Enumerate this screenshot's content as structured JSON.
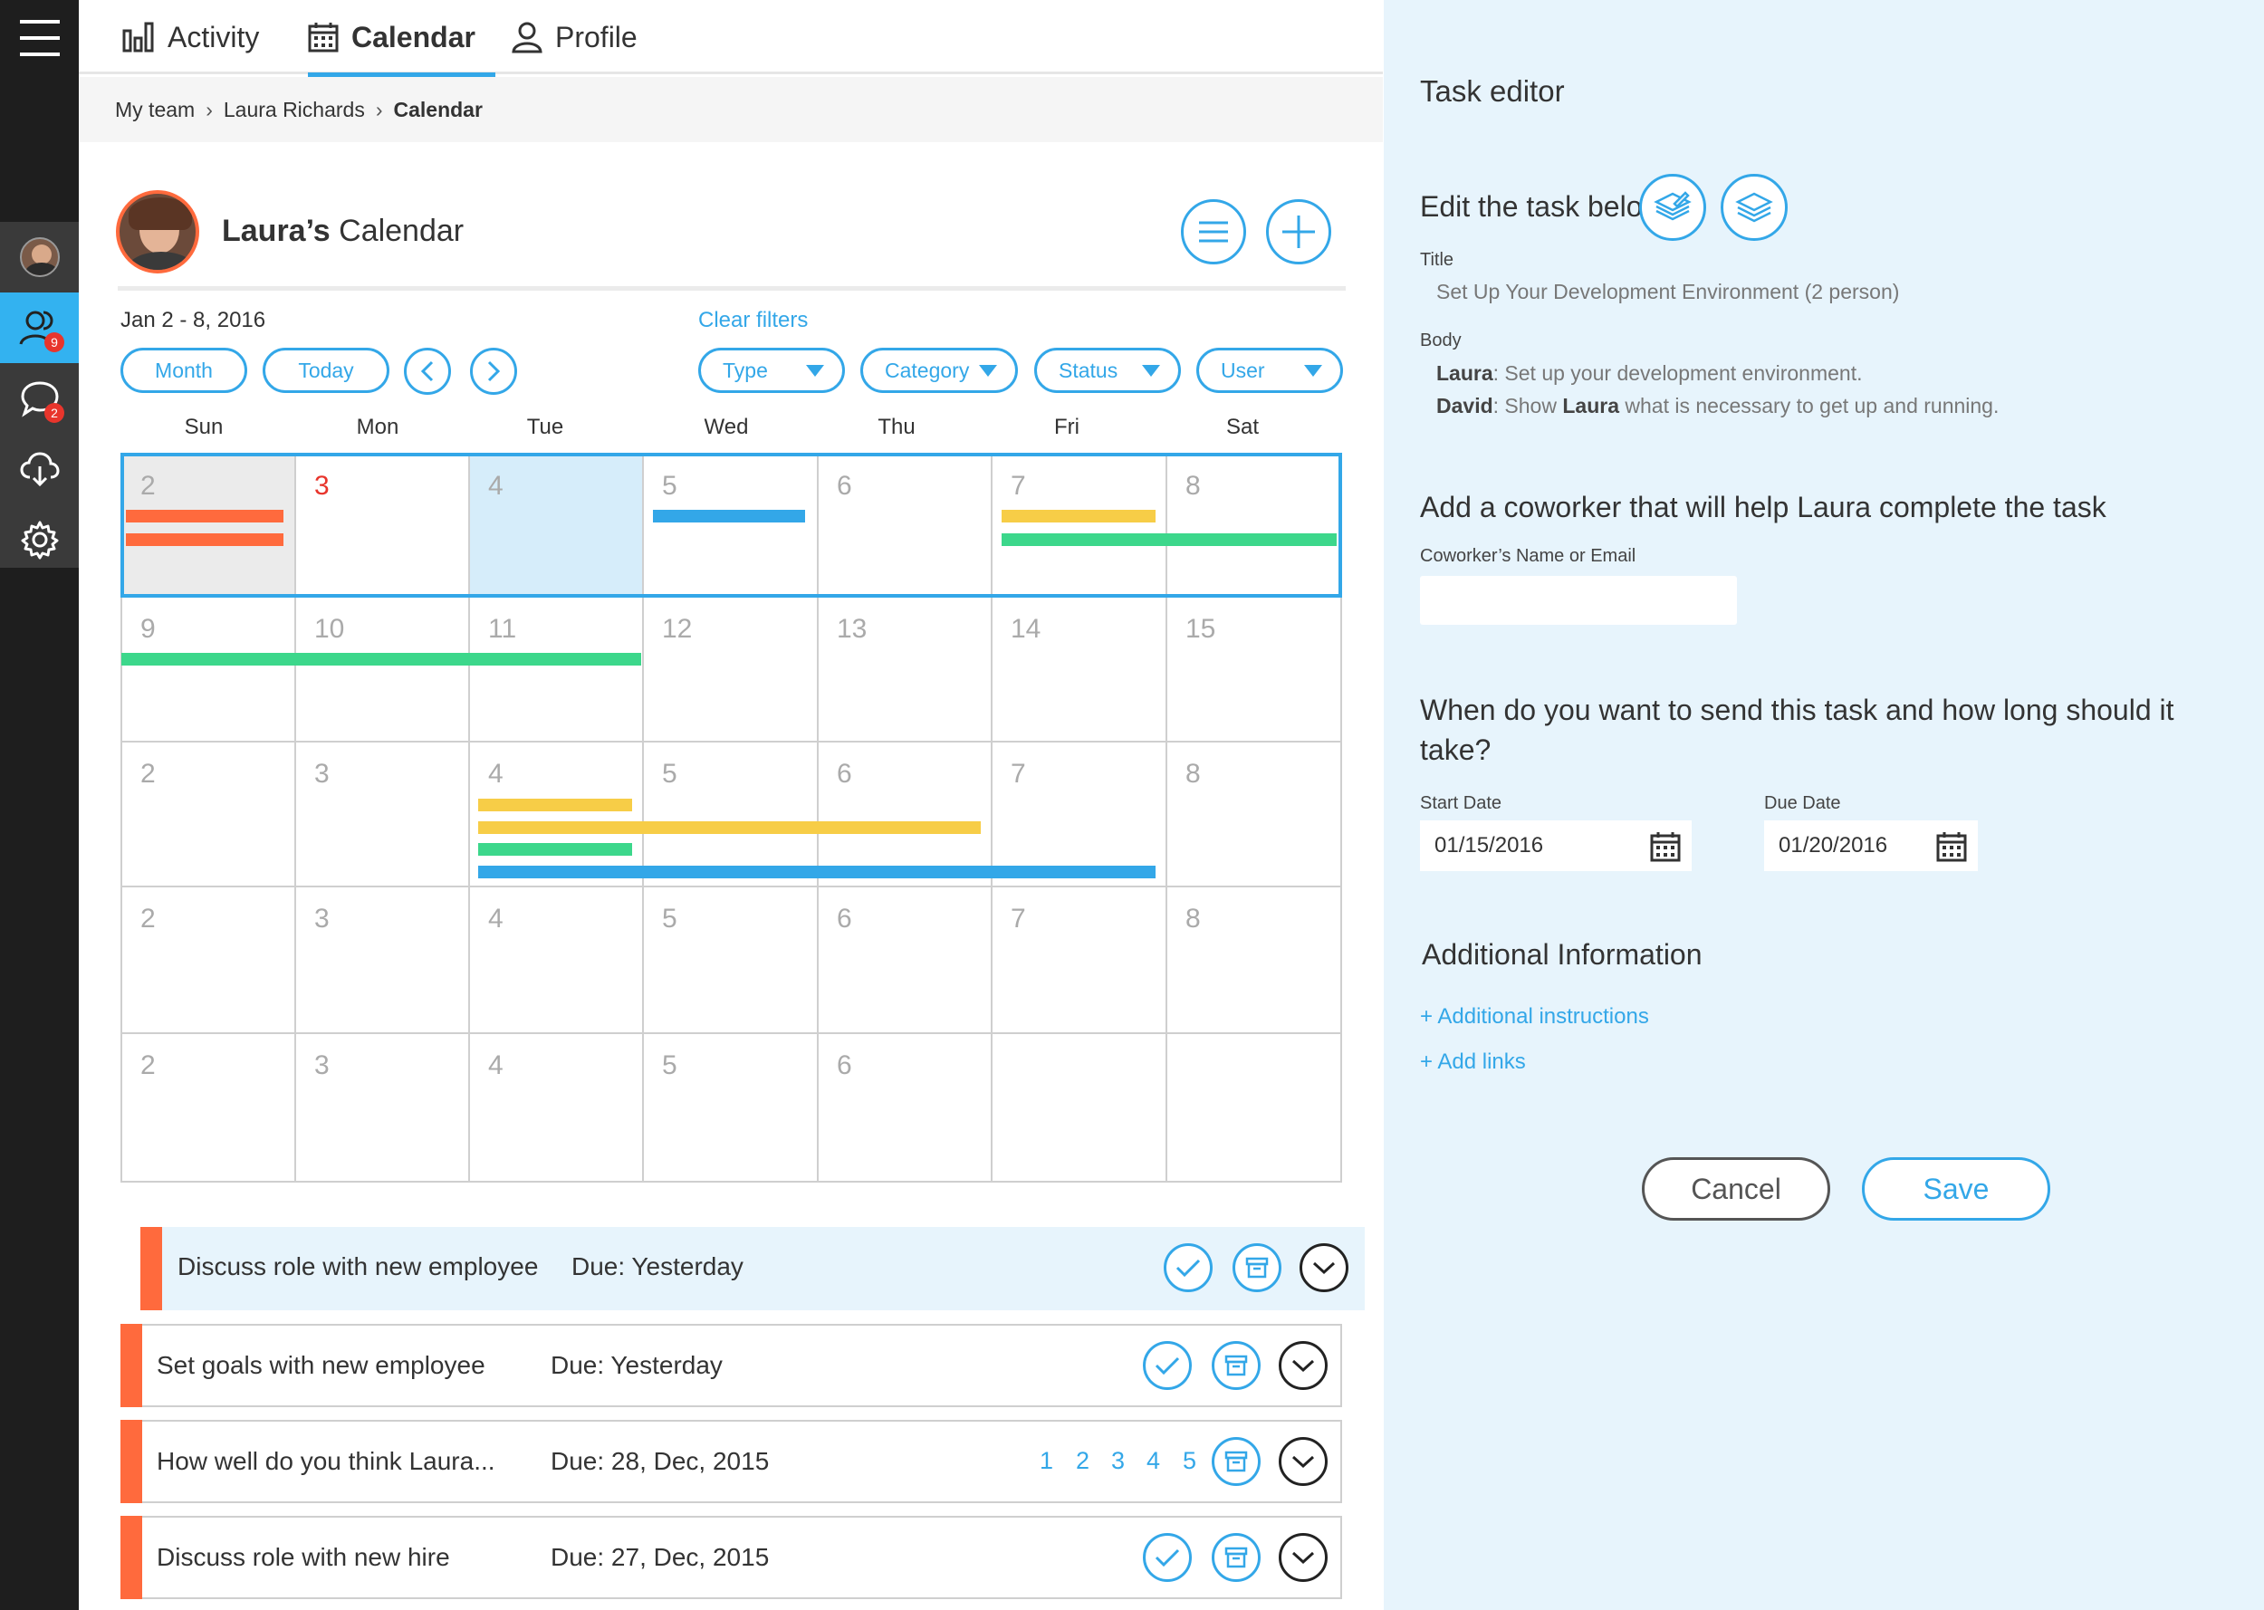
{
  "nav": {
    "tabs": [
      {
        "label": "Activity",
        "icon": "bar-chart-icon"
      },
      {
        "label": "Calendar",
        "icon": "calendar-icon"
      },
      {
        "label": "Profile",
        "icon": "user-icon"
      }
    ],
    "active_tab": "Calendar"
  },
  "sidebar": {
    "team_badge": "9",
    "messages_badge": "2"
  },
  "breadcrumb": {
    "items": [
      "My team",
      "Laura Richards",
      "Calendar"
    ]
  },
  "calendar": {
    "title_owner": "Laura’s",
    "title_rest": " Calendar",
    "date_range": "Jan 2 - 8, 2016",
    "clear_filters": "Clear filters",
    "month_btn": "Month",
    "today_btn": "Today",
    "filters": [
      "Type",
      "Category",
      "Status",
      "User"
    ],
    "weekdays": [
      "Sun",
      "Mon",
      "Tue",
      "Wed",
      "Thu",
      "Fri",
      "Sat"
    ],
    "weeks": [
      [
        "2",
        "3",
        "4",
        "5",
        "6",
        "7",
        "8"
      ],
      [
        "9",
        "10",
        "11",
        "12",
        "13",
        "14",
        "15"
      ],
      [
        "2",
        "3",
        "4",
        "5",
        "6",
        "7",
        "8"
      ],
      [
        "2",
        "3",
        "4",
        "5",
        "6",
        "7",
        "8"
      ],
      [
        "2",
        "3",
        "4",
        "5",
        "6",
        "",
        ""
      ]
    ],
    "colors": {
      "orange": "#ff6a3d",
      "blue": "#33a7e8",
      "yellow": "#f7cd47",
      "green": "#3cd78b"
    }
  },
  "tasks": [
    {
      "name": "Discuss role with new employee",
      "due": "Due: Yesterday"
    },
    {
      "name": "Set goals with new employee",
      "due": "Due: Yesterday"
    },
    {
      "name": "How well do you think Laura...",
      "due": "Due: 28, Dec, 2015",
      "ratings": [
        "1",
        "2",
        "3",
        "4",
        "5"
      ]
    },
    {
      "name": "Discuss role with new hire",
      "due": "Due: 27, Dec, 2015"
    }
  ],
  "editor": {
    "title": "Task editor",
    "edit_heading": "Edit the task below",
    "title_label": "Title",
    "title_value": "Set Up Your Development Environment (2 person)",
    "body_label": "Body",
    "body_lines": [
      {
        "who": "Laura",
        "text": ": Set up your development environment."
      },
      {
        "who": "David",
        "text_a": ": Show ",
        "name": "Laura",
        "text_b": " what is necessary to get up and running."
      }
    ],
    "coworker_heading": "Add a coworker that will help Laura complete the task",
    "coworker_label": "Coworker’s Name or Email",
    "when_heading": "When do you want to send this task and how long should it take?",
    "start_label": "Start Date",
    "start_value": "01/15/2016",
    "due_label": "Due Date",
    "due_value": "01/20/2016",
    "additional_heading": "Additional Information",
    "link_instructions": "+ Additional instructions",
    "link_links": "+ Add links",
    "cancel": "Cancel",
    "save": "Save"
  }
}
